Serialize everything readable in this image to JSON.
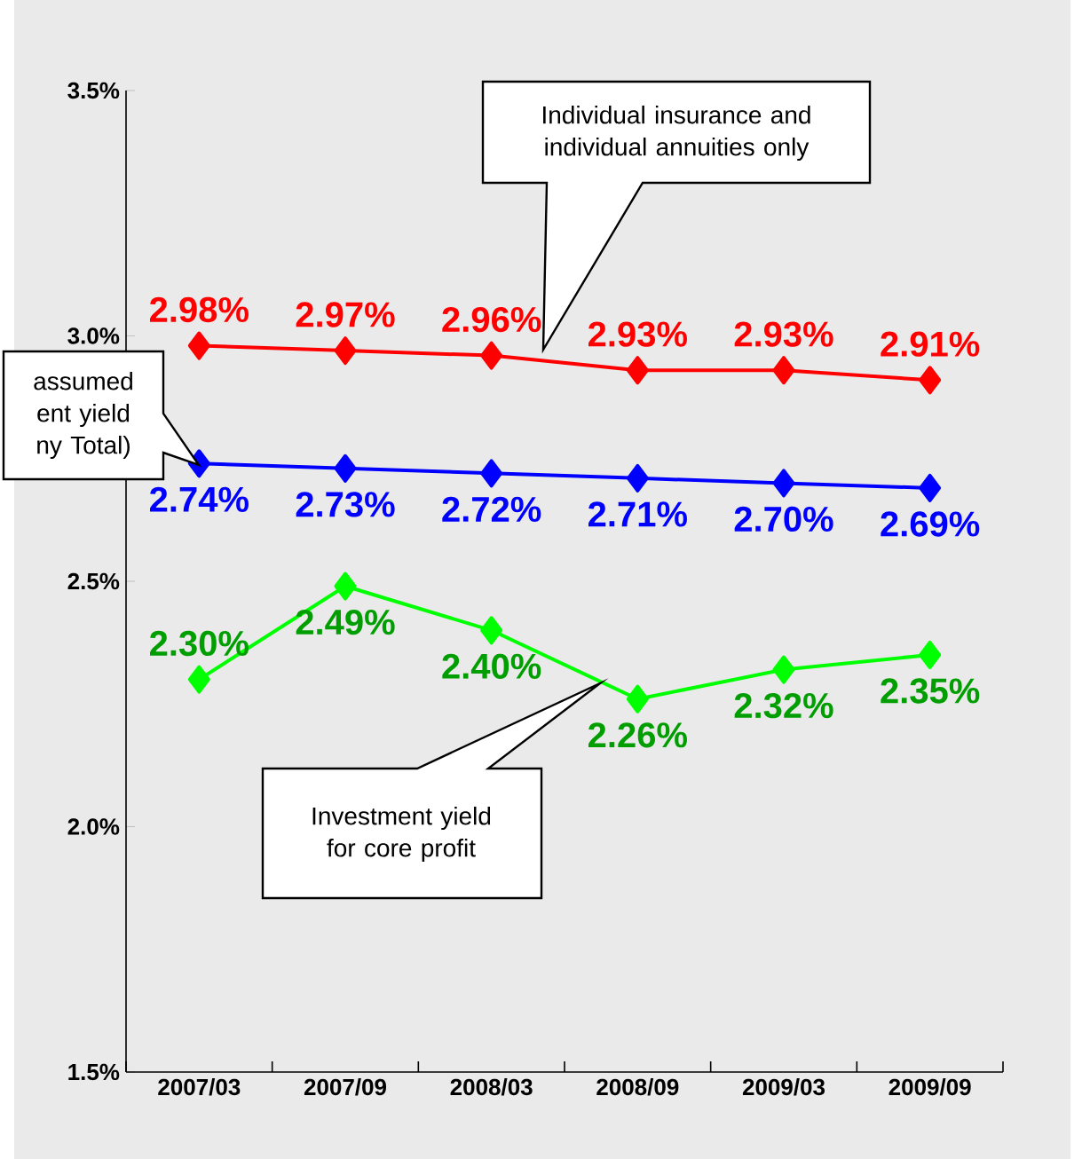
{
  "chart_data": {
    "type": "line",
    "categories": [
      "2007/03",
      "2007/09",
      "2008/03",
      "2008/09",
      "2009/03",
      "2009/09"
    ],
    "series": [
      {
        "color": "#ff0000",
        "values": [
          2.98,
          2.97,
          2.96,
          2.93,
          2.93,
          2.91
        ],
        "value_labels": [
          "2.98%",
          "2.97%",
          "2.96%",
          "2.93%",
          "2.93%",
          "2.91%"
        ]
      },
      {
        "color": "#0000ff",
        "values": [
          2.74,
          2.73,
          2.72,
          2.71,
          2.7,
          2.69
        ],
        "value_labels": [
          "2.74%",
          "2.73%",
          "2.72%",
          "2.71%",
          "2.70%",
          "2.69%"
        ]
      },
      {
        "color": "#00ff00",
        "values": [
          2.3,
          2.49,
          2.4,
          2.26,
          2.32,
          2.35
        ],
        "value_labels": [
          "2.30%",
          "2.49%",
          "2.40%",
          "2.26%",
          "2.32%",
          "2.35%"
        ]
      }
    ],
    "ylim": [
      1.5,
      3.5
    ],
    "yticks": [
      {
        "value": 1.5,
        "label": "1.5%"
      },
      {
        "value": 2.0,
        "label": "2.0%"
      },
      {
        "value": 2.5,
        "label": "2.5%"
      },
      {
        "value": 3.0,
        "label": "3.0%"
      },
      {
        "value": 3.5,
        "label": "3.5%"
      }
    ],
    "marker": "diamond",
    "line_style": "solid",
    "grid": false,
    "annotations": [
      "Individual insurance and individual annuities only",
      "assumed ent yield ny Total)",
      "Investment yield for core profit"
    ]
  }
}
